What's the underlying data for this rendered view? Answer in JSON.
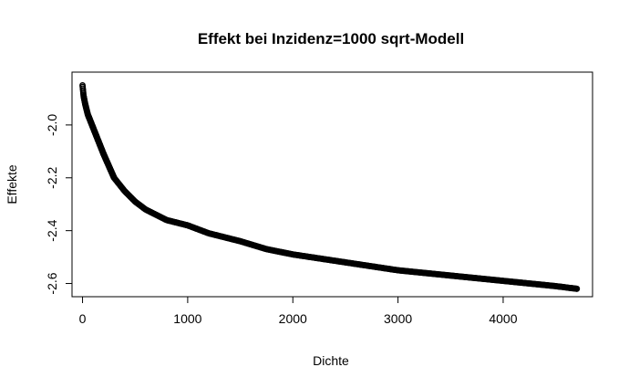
{
  "chart_data": {
    "type": "scatter",
    "title": "Effekt bei Inzidenz=1000 sqrt-Modell",
    "xlabel": "Dichte",
    "ylabel": "Effekte",
    "xlim": [
      -100,
      4850
    ],
    "ylim": [
      -2.65,
      -1.8
    ],
    "x_ticks": [
      0,
      1000,
      2000,
      3000,
      4000
    ],
    "x_tick_labels": [
      "0",
      "1000",
      "2000",
      "3000",
      "4000"
    ],
    "y_ticks": [
      -2.6,
      -2.4,
      -2.2,
      -2.0
    ],
    "y_tick_labels": [
      "-2.6",
      "-2.4",
      "-2.2",
      "-2.0"
    ],
    "grid": false,
    "marker": "open-circle",
    "color": "#000000",
    "x": [
      0,
      10,
      25,
      50,
      100,
      150,
      200,
      300,
      400,
      500,
      600,
      700,
      800,
      1000,
      1200,
      1500,
      1750,
      2000,
      2500,
      3000,
      3500,
      4000,
      4500,
      4700
    ],
    "y": [
      -1.85,
      -1.89,
      -1.92,
      -1.96,
      -2.01,
      -2.06,
      -2.11,
      -2.2,
      -2.25,
      -2.29,
      -2.32,
      -2.34,
      -2.36,
      -2.38,
      -2.41,
      -2.44,
      -2.47,
      -2.49,
      -2.52,
      -2.55,
      -2.57,
      -2.59,
      -2.61,
      -2.62
    ]
  }
}
